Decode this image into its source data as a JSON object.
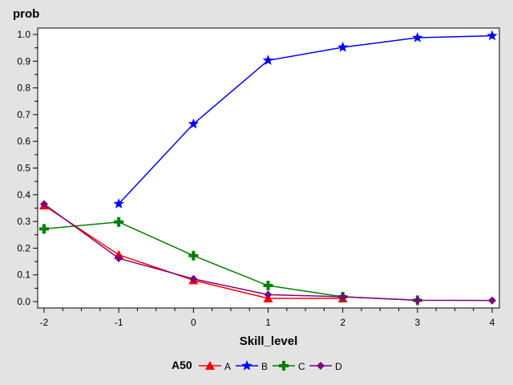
{
  "chart_data": {
    "type": "line",
    "title": "",
    "ylabel": "prob",
    "xlabel": "Skill_level",
    "xlim": [
      -2,
      4
    ],
    "ylim": [
      0,
      1.0
    ],
    "x_ticks": [
      "-2",
      "-1",
      "0",
      "1",
      "2",
      "3",
      "4"
    ],
    "y_ticks": [
      "0.0",
      "0.1",
      "0.2",
      "0.3",
      "0.4",
      "0.5",
      "0.6",
      "0.7",
      "0.8",
      "0.9",
      "1.0"
    ],
    "grid": false,
    "legend_title": "A50",
    "legend_placement": "bottom",
    "series": [
      {
        "name": "A",
        "color": "#ff0000",
        "marker": "triangle",
        "x": [
          -2,
          -1,
          0,
          1,
          2
        ],
        "values": [
          0.36,
          0.175,
          0.08,
          0.012,
          0.012
        ]
      },
      {
        "name": "B",
        "color": "#0000ff",
        "marker": "star",
        "x": [
          -1,
          0,
          1,
          2,
          3,
          4
        ],
        "values": [
          0.366,
          0.665,
          0.903,
          0.952,
          0.988,
          0.995
        ]
      },
      {
        "name": "C",
        "color": "#008000",
        "marker": "plus",
        "x": [
          -2,
          -1,
          0,
          1,
          2,
          3
        ],
        "values": [
          0.272,
          0.298,
          0.172,
          0.06,
          0.018,
          0.005
        ]
      },
      {
        "name": "D",
        "color": "#800080",
        "marker": "diamond",
        "x": [
          -2,
          -1,
          0,
          1,
          2,
          3,
          4
        ],
        "values": [
          0.365,
          0.162,
          0.085,
          0.026,
          0.018,
          0.005,
          0.004
        ]
      }
    ]
  }
}
